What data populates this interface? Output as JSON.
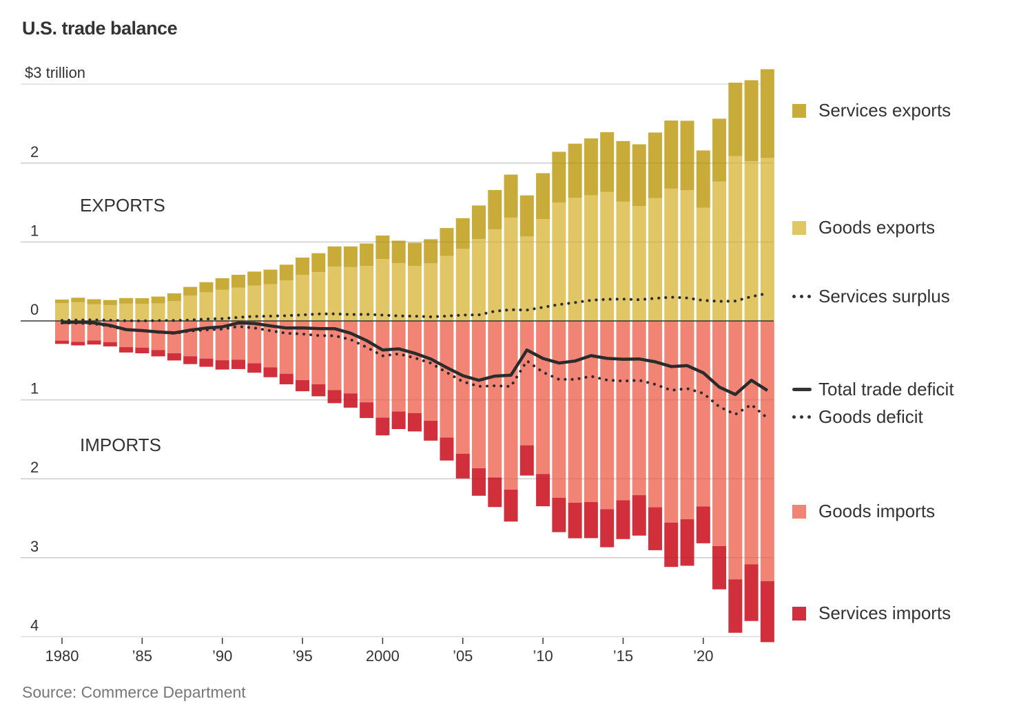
{
  "title": "U.S. trade balance",
  "source": "Source: Commerce Department",
  "colors": {
    "services_exports": "#C8AB38",
    "goods_exports": "#E0C665",
    "goods_imports": "#F28475",
    "services_imports": "#D12F3B",
    "line": "#2B2B2B"
  },
  "legend": {
    "services_exports": "Services exports",
    "goods_exports": "Goods exports",
    "services_surplus": "Services surplus",
    "total_deficit": "Total trade deficit",
    "goods_deficit": "Goods deficit",
    "goods_imports": "Goods imports",
    "services_imports": "Services imports"
  },
  "chart_data": {
    "type": "bar",
    "title": "U.S. trade balance",
    "units": "trillions of dollars",
    "xlabel": "",
    "ylabel": "",
    "ylim": [
      -4,
      3
    ],
    "grid": true,
    "legend_position": "right",
    "section_labels": {
      "exports": "EXPORTS",
      "imports": "IMPORTS"
    },
    "y_ticks": [
      {
        "value": 3,
        "label": "$3 trillion"
      },
      {
        "value": 2,
        "label": "2"
      },
      {
        "value": 1,
        "label": "1"
      },
      {
        "value": 0,
        "label": "0"
      },
      {
        "value": -1,
        "label": "1"
      },
      {
        "value": -2,
        "label": "2"
      },
      {
        "value": -3,
        "label": "3"
      },
      {
        "value": -4,
        "label": "4"
      }
    ],
    "x_ticks": [
      {
        "year": 1980,
        "label": "1980"
      },
      {
        "year": 1985,
        "label": "’85"
      },
      {
        "year": 1990,
        "label": "’90"
      },
      {
        "year": 1995,
        "label": "’95"
      },
      {
        "year": 2000,
        "label": "2000"
      },
      {
        "year": 2005,
        "label": "’05"
      },
      {
        "year": 2010,
        "label": "’10"
      },
      {
        "year": 2015,
        "label": "’15"
      },
      {
        "year": 2020,
        "label": "’20"
      }
    ],
    "years": [
      1980,
      1981,
      1982,
      1983,
      1984,
      1985,
      1986,
      1987,
      1988,
      1989,
      1990,
      1991,
      1992,
      1993,
      1994,
      1995,
      1996,
      1997,
      1998,
      1999,
      2000,
      2001,
      2002,
      2003,
      2004,
      2005,
      2006,
      2007,
      2008,
      2009,
      2010,
      2011,
      2012,
      2013,
      2014,
      2015,
      2016,
      2017,
      2018,
      2019,
      2020,
      2021,
      2022,
      2023,
      2024
    ],
    "series": [
      {
        "name": "Goods exports",
        "key": "goods_exports",
        "values": [
          0.224,
          0.237,
          0.211,
          0.201,
          0.219,
          0.215,
          0.223,
          0.251,
          0.32,
          0.363,
          0.394,
          0.421,
          0.448,
          0.465,
          0.513,
          0.584,
          0.618,
          0.688,
          0.682,
          0.698,
          0.784,
          0.731,
          0.698,
          0.73,
          0.824,
          0.913,
          1.037,
          1.161,
          1.308,
          1.07,
          1.29,
          1.499,
          1.562,
          1.593,
          1.636,
          1.511,
          1.457,
          1.557,
          1.676,
          1.656,
          1.434,
          1.765,
          2.09,
          2.023,
          2.065
        ]
      },
      {
        "name": "Services exports",
        "key": "services_exports",
        "values": [
          0.047,
          0.057,
          0.064,
          0.064,
          0.071,
          0.073,
          0.086,
          0.098,
          0.111,
          0.128,
          0.147,
          0.164,
          0.177,
          0.185,
          0.2,
          0.219,
          0.24,
          0.256,
          0.262,
          0.283,
          0.298,
          0.286,
          0.293,
          0.305,
          0.353,
          0.389,
          0.426,
          0.498,
          0.546,
          0.521,
          0.582,
          0.644,
          0.684,
          0.719,
          0.756,
          0.768,
          0.781,
          0.83,
          0.863,
          0.88,
          0.726,
          0.797,
          0.929,
          1.027,
          1.124
        ]
      },
      {
        "name": "Goods imports",
        "key": "goods_imports",
        "values": [
          0.25,
          0.265,
          0.248,
          0.268,
          0.332,
          0.338,
          0.368,
          0.409,
          0.447,
          0.477,
          0.498,
          0.491,
          0.537,
          0.589,
          0.669,
          0.749,
          0.803,
          0.876,
          0.918,
          1.031,
          1.226,
          1.148,
          1.167,
          1.264,
          1.477,
          1.682,
          1.866,
          1.983,
          2.138,
          1.576,
          1.939,
          2.24,
          2.303,
          2.295,
          2.385,
          2.273,
          2.208,
          2.361,
          2.555,
          2.513,
          2.351,
          2.852,
          3.274,
          3.083,
          3.296
        ]
      },
      {
        "name": "Services imports",
        "key": "services_imports",
        "values": [
          0.041,
          0.045,
          0.051,
          0.055,
          0.068,
          0.072,
          0.081,
          0.092,
          0.1,
          0.104,
          0.118,
          0.119,
          0.119,
          0.124,
          0.134,
          0.142,
          0.152,
          0.166,
          0.181,
          0.199,
          0.224,
          0.222,
          0.233,
          0.253,
          0.292,
          0.314,
          0.349,
          0.375,
          0.404,
          0.383,
          0.409,
          0.436,
          0.451,
          0.457,
          0.482,
          0.491,
          0.512,
          0.544,
          0.562,
          0.589,
          0.466,
          0.549,
          0.677,
          0.719,
          0.774
        ]
      }
    ],
    "lines": [
      {
        "name": "Services surplus",
        "key": "services_surplus",
        "style": "dotted",
        "derived": "services_exports - services_imports"
      },
      {
        "name": "Total trade deficit",
        "key": "total_deficit",
        "style": "solid",
        "derived": "exports - imports"
      },
      {
        "name": "Goods deficit",
        "key": "goods_deficit",
        "style": "dotted",
        "derived": "goods_exports - goods_imports"
      }
    ]
  }
}
